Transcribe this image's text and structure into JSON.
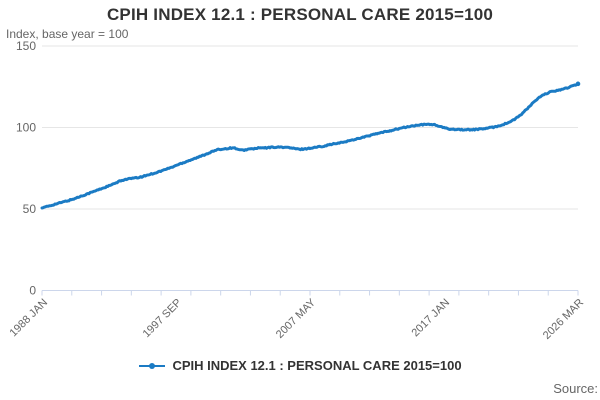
{
  "title": "CPIH INDEX 12.1 : PERSONAL CARE 2015=100",
  "subtitle": "Index, base year = 100",
  "source_label": "Source:",
  "legend": {
    "label": "CPIH INDEX 12.1 : PERSONAL CARE 2015=100",
    "color": "#1b7bc4"
  },
  "chart_data": {
    "type": "line",
    "title": "CPIH INDEX 12.1 : PERSONAL CARE 2015=100",
    "subtitle": "Index, base year = 100",
    "xlabel": "",
    "ylabel": "Index, base year = 100",
    "ylim": [
      0,
      150
    ],
    "yticks": [
      0,
      50,
      100,
      150
    ],
    "x_start": "1988 JAN",
    "x_end": "2026 MAR",
    "xtick_labels": [
      "1988 JAN",
      "1997 SEP",
      "2007 MAY",
      "2017 JAN",
      "2026 MAR"
    ],
    "minor_xtick_count": 19,
    "grid": "horizontal",
    "legend_position": "bottom",
    "line_color": "#1b7bc4",
    "axis_color": "#ccd6eb",
    "grid_color": "#e6e6e6",
    "tick_label_color": "#666666",
    "series": [
      {
        "name": "CPIH INDEX 12.1 : PERSONAL CARE 2015=100",
        "color": "#1b7bc4",
        "frequency": "quarterly",
        "start": "1988 Q1",
        "end": "2026 Q1",
        "values": [
          50.6,
          51.2,
          51.9,
          52.5,
          53.1,
          53.7,
          54.3,
          54.9,
          55.5,
          56.2,
          57.0,
          57.8,
          58.6,
          59.4,
          60.2,
          61.0,
          61.8,
          62.6,
          63.4,
          64.2,
          65.0,
          66.0,
          67.0,
          67.8,
          68.3,
          68.6,
          68.9,
          69.1,
          69.6,
          70.2,
          70.9,
          71.5,
          72.1,
          72.8,
          73.5,
          74.3,
          75.0,
          75.8,
          76.7,
          77.6,
          78.4,
          79.2,
          80.0,
          80.8,
          81.5,
          82.3,
          83.2,
          84.1,
          85.0,
          85.8,
          86.4,
          86.8,
          87.0,
          87.3,
          87.5,
          87.2,
          86.2,
          86.0,
          86.5,
          86.8,
          87.0,
          87.3,
          87.5,
          87.4,
          87.6,
          87.8,
          88.0,
          87.9,
          88.0,
          87.8,
          87.6,
          87.3,
          86.9,
          86.6,
          86.8,
          87.0,
          87.3,
          87.6,
          88.0,
          88.3,
          88.7,
          89.2,
          89.7,
          90.0,
          90.3,
          90.8,
          91.3,
          91.8,
          92.3,
          92.9,
          93.5,
          94.0,
          94.5,
          95.1,
          95.7,
          96.2,
          96.7,
          97.2,
          97.7,
          98.2,
          98.7,
          99.2,
          99.7,
          100.1,
          100.5,
          100.9,
          101.2,
          101.5,
          101.7,
          101.9,
          102.0,
          101.8,
          101.2,
          100.5,
          99.8,
          99.3,
          99.0,
          98.9,
          98.8,
          98.7,
          98.6,
          98.6,
          98.7,
          98.8,
          99.0,
          99.2,
          99.5,
          99.8,
          100.2,
          100.7,
          101.3,
          102.0,
          102.8,
          103.8,
          105.0,
          106.5,
          108.2,
          110.2,
          112.4,
          114.6,
          116.6,
          118.3,
          119.7,
          120.8,
          121.6,
          122.2,
          122.7,
          123.2,
          123.7,
          124.3,
          125.0,
          125.8,
          126.8
        ]
      }
    ]
  }
}
